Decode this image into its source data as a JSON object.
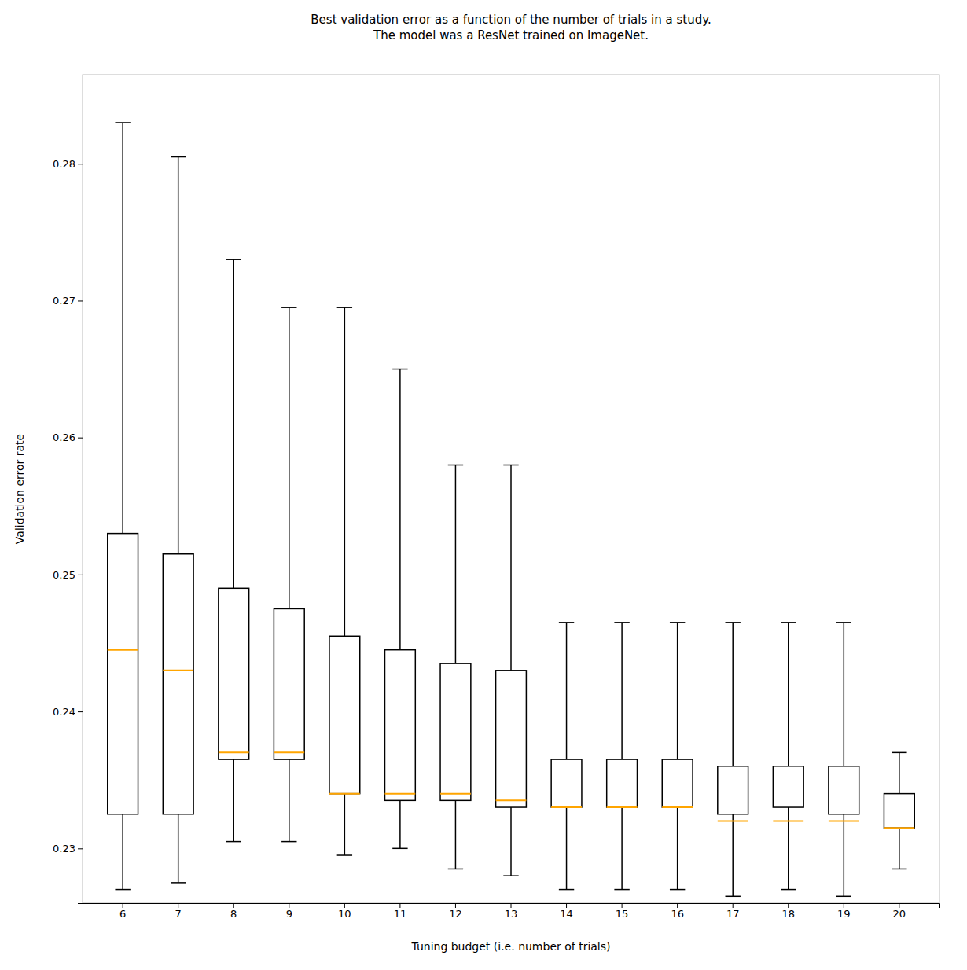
{
  "chart_data": {
    "type": "box",
    "title": "Best validation error as a function of the number of trials in a study.\nThe model was a ResNet trained on ImageNet.",
    "x_label": "Tuning budget (i.e. number of trials)",
    "y_label": "Validation error rate",
    "categories": [
      "6",
      "7",
      "8",
      "9",
      "10",
      "11",
      "12",
      "13",
      "14",
      "15",
      "16",
      "17",
      "18",
      "19",
      "20"
    ],
    "boxes": [
      {
        "whislo": 0.227,
        "q1": 0.2325,
        "med": 0.2445,
        "q3": 0.253,
        "whishi": 0.283
      },
      {
        "whislo": 0.2275,
        "q1": 0.2325,
        "med": 0.243,
        "q3": 0.2515,
        "whishi": 0.2805
      },
      {
        "whislo": 0.2305,
        "q1": 0.2365,
        "med": 0.237,
        "q3": 0.249,
        "whishi": 0.273
      },
      {
        "whislo": 0.2305,
        "q1": 0.2365,
        "med": 0.237,
        "q3": 0.2475,
        "whishi": 0.2695
      },
      {
        "whislo": 0.2295,
        "q1": 0.234,
        "med": 0.234,
        "q3": 0.2455,
        "whishi": 0.2695
      },
      {
        "whislo": 0.23,
        "q1": 0.2335,
        "med": 0.234,
        "q3": 0.2445,
        "whishi": 0.265
      },
      {
        "whislo": 0.2285,
        "q1": 0.2335,
        "med": 0.234,
        "q3": 0.2435,
        "whishi": 0.258
      },
      {
        "whislo": 0.228,
        "q1": 0.233,
        "med": 0.2335,
        "q3": 0.243,
        "whishi": 0.258
      },
      {
        "whislo": 0.227,
        "q1": 0.233,
        "med": 0.233,
        "q3": 0.2365,
        "whishi": 0.2465
      },
      {
        "whislo": 0.227,
        "q1": 0.233,
        "med": 0.233,
        "q3": 0.2365,
        "whishi": 0.2465
      },
      {
        "whislo": 0.227,
        "q1": 0.233,
        "med": 0.233,
        "q3": 0.2365,
        "whishi": 0.2465
      },
      {
        "whislo": 0.2265,
        "q1": 0.2325,
        "med": 0.232,
        "q3": 0.236,
        "whishi": 0.2465
      },
      {
        "whislo": 0.227,
        "q1": 0.233,
        "med": 0.232,
        "q3": 0.236,
        "whishi": 0.2465
      },
      {
        "whislo": 0.2265,
        "q1": 0.2325,
        "med": 0.232,
        "q3": 0.236,
        "whishi": 0.2465
      },
      {
        "whislo": 0.2285,
        "q1": 0.2315,
        "med": 0.2315,
        "q3": 0.234,
        "whishi": 0.237
      }
    ],
    "color": "#FFA500",
    "ylim": [
      0.226,
      0.2865
    ],
    "yticks": [
      0.23,
      0.24,
      0.25,
      0.26,
      0.27,
      0.28
    ],
    "grid": false
  }
}
